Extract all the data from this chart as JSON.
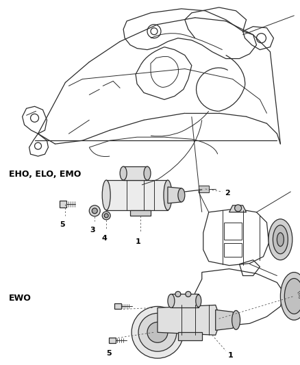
{
  "bg_color": "#ffffff",
  "line_color": "#2a2a2a",
  "label_color": "#000000",
  "label_eho": "EHO, ELO, EMO",
  "label_ewo": "EWO",
  "figsize": [
    4.39,
    5.33
  ],
  "dpi": 100
}
